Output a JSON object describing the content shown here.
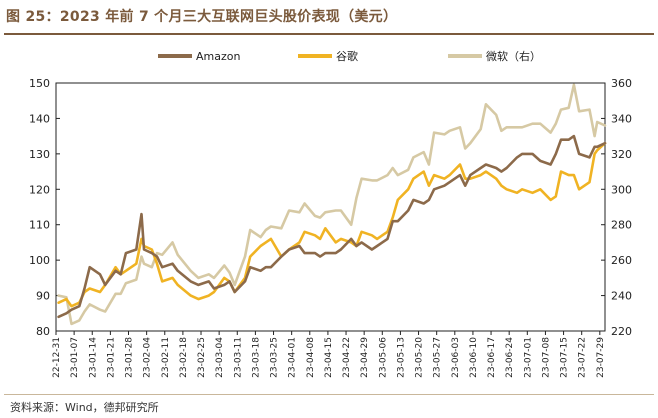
{
  "title": "图 25：2023 年前 7 个月三大互联网巨头股价表现（美元）",
  "source": "资料来源：Wind，德邦研究所",
  "chart_data": {
    "type": "line",
    "legend_position": "top",
    "grid": false,
    "xlabel": "",
    "ylabel": "",
    "y_left_ticks": [
      80,
      90,
      100,
      110,
      120,
      130,
      140,
      150
    ],
    "y_right_ticks": [
      220,
      240,
      260,
      280,
      300,
      320,
      340,
      360
    ],
    "ylim_left": [
      80,
      150
    ],
    "ylim_right": [
      220,
      360
    ],
    "x_tick_labels": [
      "22-12-31",
      "23-01-07",
      "23-01-14",
      "23-01-21",
      "23-01-28",
      "23-02-04",
      "23-02-11",
      "23-02-18",
      "23-02-25",
      "23-03-04",
      "23-03-11",
      "23-03-18",
      "23-03-25",
      "23-04-01",
      "23-04-08",
      "23-04-15",
      "23-04-22",
      "23-04-29",
      "23-05-06",
      "23-05-13",
      "23-05-20",
      "23-05-27",
      "23-06-03",
      "23-06-10",
      "23-06-17",
      "23-06-24",
      "23-07-01",
      "23-07-08",
      "23-07-15",
      "23-07-22",
      "23-07-29"
    ],
    "x_start": "2022-12-31",
    "x_end": "2023-07-31",
    "colors": {
      "amazon": "#8c6a4a",
      "google": "#f0b323",
      "microsoft": "#d6c9a4"
    },
    "series": [
      {
        "name": "Amazon",
        "axis": "left",
        "color": "#8c6a4a",
        "points": [
          [
            "2023-01-01",
            84
          ],
          [
            "2023-01-04",
            85
          ],
          [
            "2023-01-06",
            86
          ],
          [
            "2023-01-09",
            87
          ],
          [
            "2023-01-11",
            92
          ],
          [
            "2023-01-13",
            98
          ],
          [
            "2023-01-17",
            96
          ],
          [
            "2023-01-19",
            93
          ],
          [
            "2023-01-23",
            97
          ],
          [
            "2023-01-25",
            96
          ],
          [
            "2023-01-27",
            102
          ],
          [
            "2023-01-31",
            103
          ],
          [
            "2023-02-02",
            113
          ],
          [
            "2023-02-03",
            103
          ],
          [
            "2023-02-06",
            102
          ],
          [
            "2023-02-08",
            101
          ],
          [
            "2023-02-10",
            98
          ],
          [
            "2023-02-14",
            99
          ],
          [
            "2023-02-16",
            97
          ],
          [
            "2023-02-21",
            94
          ],
          [
            "2023-02-24",
            93
          ],
          [
            "2023-02-28",
            94
          ],
          [
            "2023-03-02",
            92
          ],
          [
            "2023-03-06",
            93
          ],
          [
            "2023-03-08",
            94
          ],
          [
            "2023-03-10",
            91
          ],
          [
            "2023-03-14",
            94
          ],
          [
            "2023-03-16",
            98
          ],
          [
            "2023-03-20",
            97
          ],
          [
            "2023-03-22",
            98
          ],
          [
            "2023-03-24",
            98
          ],
          [
            "2023-03-28",
            101
          ],
          [
            "2023-03-31",
            103
          ],
          [
            "2023-04-04",
            104
          ],
          [
            "2023-04-06",
            102
          ],
          [
            "2023-04-10",
            102
          ],
          [
            "2023-04-12",
            101
          ],
          [
            "2023-04-14",
            102
          ],
          [
            "2023-04-18",
            102
          ],
          [
            "2023-04-20",
            103
          ],
          [
            "2023-04-24",
            106
          ],
          [
            "2023-04-26",
            104
          ],
          [
            "2023-04-28",
            105
          ],
          [
            "2023-05-02",
            103
          ],
          [
            "2023-05-04",
            104
          ],
          [
            "2023-05-08",
            106
          ],
          [
            "2023-05-10",
            111
          ],
          [
            "2023-05-12",
            111
          ],
          [
            "2023-05-16",
            114
          ],
          [
            "2023-05-18",
            117
          ],
          [
            "2023-05-22",
            116
          ],
          [
            "2023-05-24",
            117
          ],
          [
            "2023-05-26",
            120
          ],
          [
            "2023-05-30",
            121
          ],
          [
            "2023-06-01",
            122
          ],
          [
            "2023-06-05",
            124
          ],
          [
            "2023-06-07",
            121
          ],
          [
            "2023-06-09",
            124
          ],
          [
            "2023-06-13",
            126
          ],
          [
            "2023-06-15",
            127
          ],
          [
            "2023-06-19",
            126
          ],
          [
            "2023-06-21",
            125
          ],
          [
            "2023-06-23",
            126
          ],
          [
            "2023-06-27",
            129
          ],
          [
            "2023-06-29",
            130
          ],
          [
            "2023-07-03",
            130
          ],
          [
            "2023-07-06",
            128
          ],
          [
            "2023-07-10",
            127
          ],
          [
            "2023-07-12",
            130
          ],
          [
            "2023-07-14",
            134
          ],
          [
            "2023-07-17",
            134
          ],
          [
            "2023-07-19",
            135
          ],
          [
            "2023-07-21",
            130
          ],
          [
            "2023-07-25",
            129
          ],
          [
            "2023-07-27",
            132
          ],
          [
            "2023-07-28",
            132
          ],
          [
            "2023-07-31",
            133
          ]
        ]
      },
      {
        "name": "谷歌",
        "axis": "left",
        "color": "#f0b323",
        "points": [
          [
            "2023-01-01",
            88
          ],
          [
            "2023-01-04",
            89
          ],
          [
            "2023-01-06",
            87
          ],
          [
            "2023-01-09",
            88
          ],
          [
            "2023-01-11",
            91
          ],
          [
            "2023-01-13",
            92
          ],
          [
            "2023-01-17",
            91
          ],
          [
            "2023-01-19",
            93
          ],
          [
            "2023-01-23",
            98
          ],
          [
            "2023-01-25",
            96
          ],
          [
            "2023-01-27",
            97
          ],
          [
            "2023-01-31",
            99
          ],
          [
            "2023-02-02",
            106
          ],
          [
            "2023-02-03",
            104
          ],
          [
            "2023-02-06",
            103
          ],
          [
            "2023-02-08",
            99
          ],
          [
            "2023-02-10",
            94
          ],
          [
            "2023-02-14",
            95
          ],
          [
            "2023-02-16",
            93
          ],
          [
            "2023-02-21",
            90
          ],
          [
            "2023-02-24",
            89
          ],
          [
            "2023-02-28",
            90
          ],
          [
            "2023-03-02",
            91
          ],
          [
            "2023-03-06",
            95
          ],
          [
            "2023-03-08",
            94
          ],
          [
            "2023-03-10",
            91
          ],
          [
            "2023-03-14",
            95
          ],
          [
            "2023-03-16",
            101
          ],
          [
            "2023-03-20",
            104
          ],
          [
            "2023-03-22",
            105
          ],
          [
            "2023-03-24",
            106
          ],
          [
            "2023-03-28",
            101
          ],
          [
            "2023-03-31",
            103
          ],
          [
            "2023-04-04",
            105
          ],
          [
            "2023-04-06",
            108
          ],
          [
            "2023-04-10",
            107
          ],
          [
            "2023-04-12",
            106
          ],
          [
            "2023-04-14",
            109
          ],
          [
            "2023-04-18",
            105
          ],
          [
            "2023-04-20",
            106
          ],
          [
            "2023-04-24",
            105
          ],
          [
            "2023-04-26",
            104
          ],
          [
            "2023-04-28",
            108
          ],
          [
            "2023-05-02",
            107
          ],
          [
            "2023-05-04",
            106
          ],
          [
            "2023-05-08",
            108
          ],
          [
            "2023-05-10",
            112
          ],
          [
            "2023-05-12",
            117
          ],
          [
            "2023-05-16",
            120
          ],
          [
            "2023-05-18",
            123
          ],
          [
            "2023-05-22",
            125
          ],
          [
            "2023-05-24",
            121
          ],
          [
            "2023-05-26",
            124
          ],
          [
            "2023-05-30",
            123
          ],
          [
            "2023-06-01",
            124
          ],
          [
            "2023-06-05",
            127
          ],
          [
            "2023-06-07",
            123
          ],
          [
            "2023-06-09",
            123
          ],
          [
            "2023-06-13",
            124
          ],
          [
            "2023-06-15",
            125
          ],
          [
            "2023-06-19",
            123
          ],
          [
            "2023-06-21",
            121
          ],
          [
            "2023-06-23",
            120
          ],
          [
            "2023-06-27",
            119
          ],
          [
            "2023-06-29",
            120
          ],
          [
            "2023-07-03",
            119
          ],
          [
            "2023-07-06",
            120
          ],
          [
            "2023-07-10",
            117
          ],
          [
            "2023-07-12",
            118
          ],
          [
            "2023-07-14",
            125
          ],
          [
            "2023-07-17",
            124
          ],
          [
            "2023-07-19",
            124
          ],
          [
            "2023-07-21",
            120
          ],
          [
            "2023-07-25",
            122
          ],
          [
            "2023-07-27",
            130
          ],
          [
            "2023-07-28",
            131
          ],
          [
            "2023-07-31",
            133
          ]
        ]
      },
      {
        "name": "微软（右）",
        "axis": "right",
        "color": "#d6c9a4",
        "points": [
          [
            "2023-01-01",
            240
          ],
          [
            "2023-01-04",
            239
          ],
          [
            "2023-01-06",
            224
          ],
          [
            "2023-01-09",
            226
          ],
          [
            "2023-01-11",
            231
          ],
          [
            "2023-01-13",
            235
          ],
          [
            "2023-01-17",
            232
          ],
          [
            "2023-01-19",
            231
          ],
          [
            "2023-01-23",
            241
          ],
          [
            "2023-01-25",
            241
          ],
          [
            "2023-01-27",
            247
          ],
          [
            "2023-01-31",
            249
          ],
          [
            "2023-02-02",
            262
          ],
          [
            "2023-02-03",
            258
          ],
          [
            "2023-02-06",
            256
          ],
          [
            "2023-02-08",
            264
          ],
          [
            "2023-02-10",
            263
          ],
          [
            "2023-02-14",
            270
          ],
          [
            "2023-02-16",
            263
          ],
          [
            "2023-02-21",
            254
          ],
          [
            "2023-02-24",
            250
          ],
          [
            "2023-02-28",
            252
          ],
          [
            "2023-03-02",
            250
          ],
          [
            "2023-03-06",
            257
          ],
          [
            "2023-03-08",
            253
          ],
          [
            "2023-03-10",
            246
          ],
          [
            "2023-03-14",
            262
          ],
          [
            "2023-03-16",
            277
          ],
          [
            "2023-03-20",
            273
          ],
          [
            "2023-03-22",
            277
          ],
          [
            "2023-03-24",
            279
          ],
          [
            "2023-03-28",
            278
          ],
          [
            "2023-03-31",
            288
          ],
          [
            "2023-04-04",
            287
          ],
          [
            "2023-04-06",
            292
          ],
          [
            "2023-04-10",
            285
          ],
          [
            "2023-04-12",
            284
          ],
          [
            "2023-04-14",
            287
          ],
          [
            "2023-04-18",
            288
          ],
          [
            "2023-04-20",
            288
          ],
          [
            "2023-04-24",
            280
          ],
          [
            "2023-04-26",
            295
          ],
          [
            "2023-04-28",
            306
          ],
          [
            "2023-05-02",
            305
          ],
          [
            "2023-05-04",
            305
          ],
          [
            "2023-05-08",
            308
          ],
          [
            "2023-05-10",
            312
          ],
          [
            "2023-05-12",
            308
          ],
          [
            "2023-05-16",
            311
          ],
          [
            "2023-05-18",
            318
          ],
          [
            "2023-05-22",
            321
          ],
          [
            "2023-05-24",
            314
          ],
          [
            "2023-05-26",
            332
          ],
          [
            "2023-05-30",
            331
          ],
          [
            "2023-06-01",
            333
          ],
          [
            "2023-06-05",
            335
          ],
          [
            "2023-06-07",
            323
          ],
          [
            "2023-06-09",
            326
          ],
          [
            "2023-06-13",
            334
          ],
          [
            "2023-06-15",
            348
          ],
          [
            "2023-06-19",
            342
          ],
          [
            "2023-06-21",
            333
          ],
          [
            "2023-06-23",
            335
          ],
          [
            "2023-06-27",
            335
          ],
          [
            "2023-06-29",
            335
          ],
          [
            "2023-07-03",
            337
          ],
          [
            "2023-07-06",
            337
          ],
          [
            "2023-07-10",
            332
          ],
          [
            "2023-07-12",
            337
          ],
          [
            "2023-07-14",
            345
          ],
          [
            "2023-07-17",
            346
          ],
          [
            "2023-07-19",
            359
          ],
          [
            "2023-07-21",
            344
          ],
          [
            "2023-07-25",
            345
          ],
          [
            "2023-07-27",
            330
          ],
          [
            "2023-07-28",
            338
          ],
          [
            "2023-07-31",
            336
          ]
        ]
      }
    ]
  }
}
